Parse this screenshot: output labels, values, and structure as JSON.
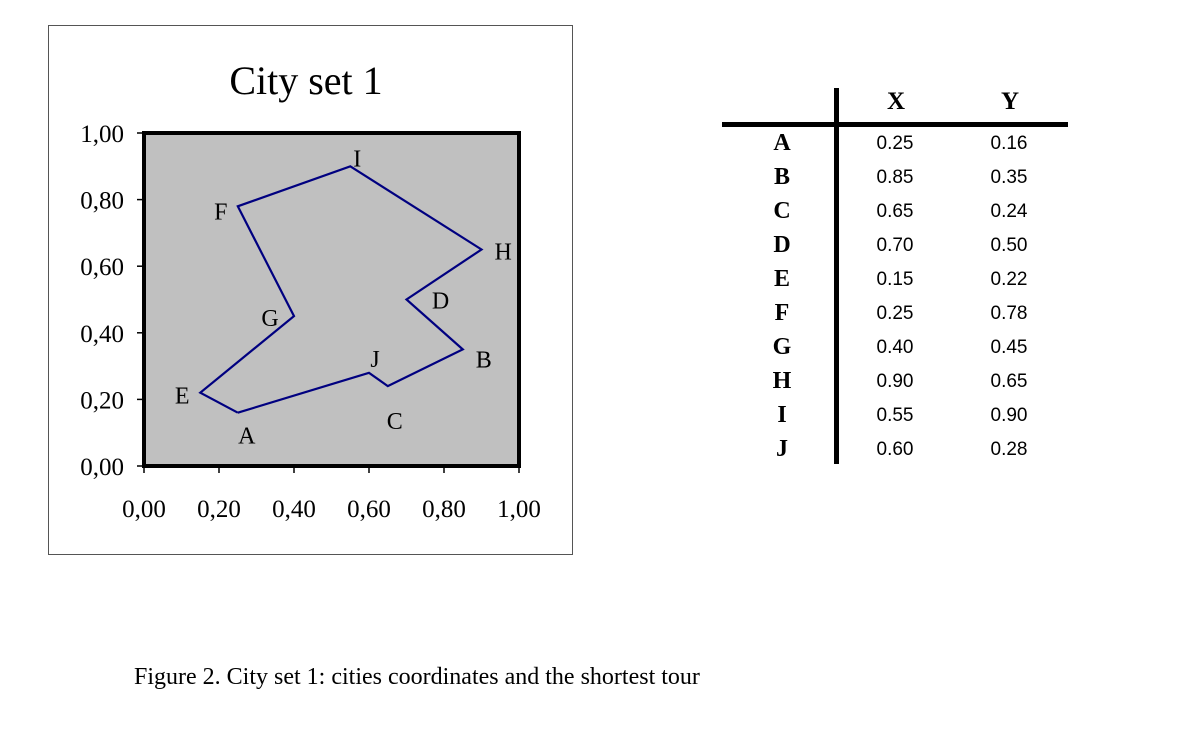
{
  "chart_data": {
    "type": "line",
    "title": "City set 1",
    "xlabel": "",
    "ylabel": "",
    "xlim": [
      0,
      1
    ],
    "ylim": [
      0,
      1
    ],
    "x_ticks": [
      "0,00",
      "0,20",
      "0,40",
      "0,60",
      "0,80",
      "1,00"
    ],
    "y_ticks": [
      "0,00",
      "0,20",
      "0,40",
      "0,60",
      "0,80",
      "1,00"
    ],
    "grid": false,
    "plot_background": "#c0c0c0",
    "line_color": "#000080",
    "cities": [
      {
        "name": "A",
        "x": 0.25,
        "y": 0.16
      },
      {
        "name": "B",
        "x": 0.85,
        "y": 0.35
      },
      {
        "name": "C",
        "x": 0.65,
        "y": 0.24
      },
      {
        "name": "D",
        "x": 0.7,
        "y": 0.5
      },
      {
        "name": "E",
        "x": 0.15,
        "y": 0.22
      },
      {
        "name": "F",
        "x": 0.25,
        "y": 0.78
      },
      {
        "name": "G",
        "x": 0.4,
        "y": 0.45
      },
      {
        "name": "H",
        "x": 0.9,
        "y": 0.65
      },
      {
        "name": "I",
        "x": 0.55,
        "y": 0.9
      },
      {
        "name": "J",
        "x": 0.6,
        "y": 0.28
      }
    ],
    "tour": [
      "A",
      "J",
      "C",
      "B",
      "D",
      "H",
      "I",
      "F",
      "G",
      "E",
      "A"
    ]
  },
  "table": {
    "headers": [
      "X",
      "Y"
    ],
    "rows": [
      {
        "label": "A",
        "x": "0.25",
        "y": "0.16"
      },
      {
        "label": "B",
        "x": "0.85",
        "y": "0.35"
      },
      {
        "label": "C",
        "x": "0.65",
        "y": "0.24"
      },
      {
        "label": "D",
        "x": "0.70",
        "y": "0.50"
      },
      {
        "label": "E",
        "x": "0.15",
        "y": "0.22"
      },
      {
        "label": "F",
        "x": "0.25",
        "y": "0.78"
      },
      {
        "label": "G",
        "x": "0.40",
        "y": "0.45"
      },
      {
        "label": "H",
        "x": "0.90",
        "y": "0.65"
      },
      {
        "label": "I",
        "x": "0.55",
        "y": "0.90"
      },
      {
        "label": "J",
        "x": "0.60",
        "y": "0.28"
      }
    ]
  },
  "caption": "Figure 2. City set 1: cities coordinates and the shortest tour"
}
